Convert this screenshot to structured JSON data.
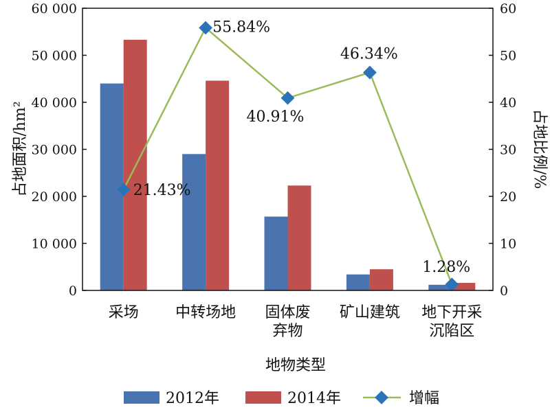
{
  "chart_data": {
    "type": "bar",
    "categories": [
      [
        "采场"
      ],
      [
        "中转场地"
      ],
      [
        "固体废",
        "弃物"
      ],
      [
        "矿山建筑"
      ],
      [
        "地下开采",
        "沉陷区"
      ]
    ],
    "series": [
      {
        "name": "2012年",
        "type": "bar",
        "axis": "left",
        "color": "#4a74b0",
        "values": [
          44000,
          29000,
          15700,
          3400,
          1200
        ]
      },
      {
        "name": "2014年",
        "type": "bar",
        "axis": "left",
        "color": "#c0504d",
        "values": [
          53300,
          44600,
          22300,
          4500,
          1600
        ]
      },
      {
        "name": "增幅",
        "type": "line",
        "axis": "right",
        "color": "#9bbb59",
        "marker_color": "#2a73b8",
        "values": [
          21.43,
          55.84,
          40.91,
          46.34,
          1.28
        ],
        "labels": [
          "21.43%",
          "55.84%",
          "40.91%",
          "46.34%",
          "1.28%"
        ]
      }
    ],
    "xlabel": "地物类型",
    "ylabel": "占地面积/hm²",
    "ylabel_right": "占地比例/%",
    "ylim": [
      0,
      60000
    ],
    "yticks": [
      "0",
      "10 000",
      "20 000",
      "30 000",
      "40 000",
      "50 000",
      "60 000"
    ],
    "ylim_right": [
      0,
      60
    ],
    "yticks_right": [
      "0",
      "10",
      "20",
      "30",
      "40",
      "50",
      "60"
    ],
    "legend": "bottom",
    "grid": false
  }
}
